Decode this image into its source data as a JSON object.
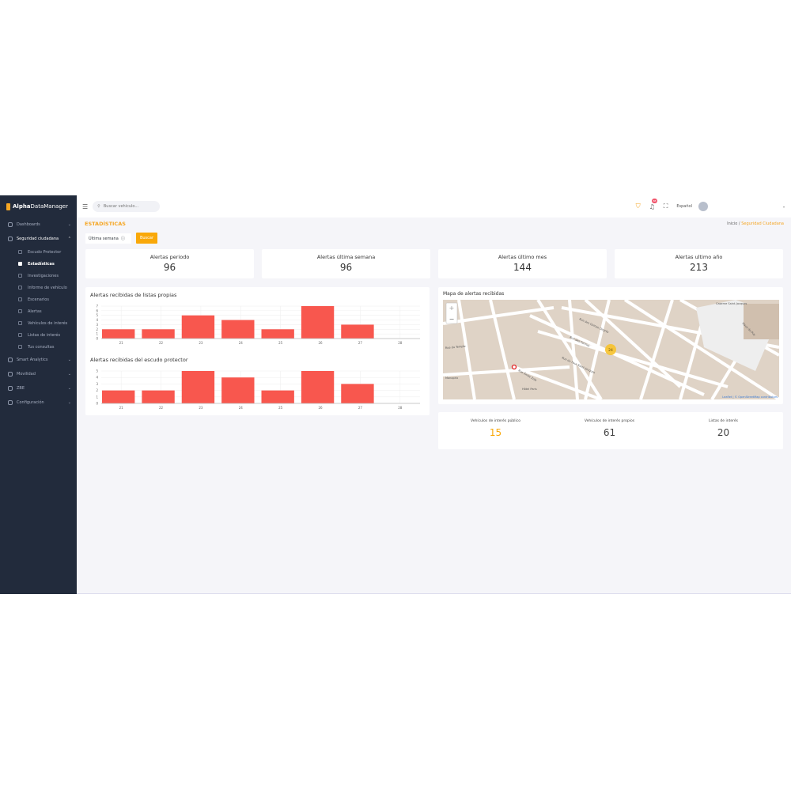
{
  "app": {
    "brand_bold": "Alpha",
    "brand_rest": "DataManager"
  },
  "sidebar": {
    "items": [
      {
        "label": "Dashboards",
        "icon": "home-icon",
        "chevron": "⌄"
      },
      {
        "label": "Seguridad ciudadana",
        "icon": "shield-icon",
        "chevron": "⌃",
        "active": true,
        "children": [
          {
            "label": "Escudo Protector",
            "icon": "shield-outline-icon"
          },
          {
            "label": "Estadísticas",
            "icon": "bar-chart-icon",
            "active": true
          },
          {
            "label": "Investigaciones",
            "icon": "investigation-icon"
          },
          {
            "label": "Informe de vehículo",
            "icon": "vehicle-report-icon"
          },
          {
            "label": "Escenarios",
            "icon": "scenario-icon"
          },
          {
            "label": "Alertas",
            "icon": "bell-icon"
          },
          {
            "label": "Vehículos de interés",
            "icon": "user-car-icon"
          },
          {
            "label": "Listas de interés",
            "icon": "list-icon"
          },
          {
            "label": "Tus consultas",
            "icon": "query-icon"
          }
        ]
      },
      {
        "label": "Smart Analytics",
        "icon": "globe-icon",
        "chevron": "⌄"
      },
      {
        "label": "Movilidad",
        "icon": "map-pin-icon",
        "chevron": "⌄"
      },
      {
        "label": "ZBE",
        "icon": "zone-icon",
        "chevron": "⌄"
      },
      {
        "label": "Configuración",
        "icon": "gear-icon",
        "chevron": "⌄"
      }
    ]
  },
  "header": {
    "search_placeholder": "Buscar vehículo...",
    "notifications": "88",
    "language": "Español",
    "accent": "#f5a623"
  },
  "page": {
    "title": "ESTADÍSTICAS",
    "breadcrumb": [
      "Inicio",
      "Seguridad Ciudadana"
    ],
    "period": "Última semana",
    "search_button": "Buscar"
  },
  "stats": [
    {
      "label": "Alertas periodo",
      "value": "96"
    },
    {
      "label": "Alertas última semana",
      "value": "96"
    },
    {
      "label": "Alertas último mes",
      "value": "144"
    },
    {
      "label": "Alertas ultimo año",
      "value": "213"
    }
  ],
  "chart_data": [
    {
      "type": "bar",
      "title": "Alertas recibidas de listas propias",
      "categories": [
        "21",
        "22",
        "23",
        "24",
        "25",
        "26",
        "27",
        "28"
      ],
      "values": [
        2,
        2,
        5,
        4,
        2,
        7,
        3,
        0
      ],
      "ylim": [
        0,
        7
      ],
      "yticks": [
        0,
        1,
        2,
        3,
        4,
        5,
        6,
        7
      ],
      "grid": true,
      "color": "#f8574e"
    },
    {
      "type": "bar",
      "title": "Alertas recibidas del escudo protector",
      "categories": [
        "21",
        "22",
        "23",
        "24",
        "25",
        "26",
        "27",
        "28"
      ],
      "values": [
        2,
        2,
        5,
        4,
        2,
        5,
        3,
        0
      ],
      "ylim": [
        0,
        5
      ],
      "yticks": [
        0,
        1,
        2,
        3,
        4,
        5
      ],
      "grid": true,
      "color": "#f8574e"
    }
  ],
  "map": {
    "title": "Mapa de alertas recibidas",
    "cluster": "24",
    "zoom_in": "+",
    "zoom_out": "−",
    "attribution": "Leaflet | © OpenStreetMap contributors",
    "labels": [
      "Rue des Quinze Degrés",
      "Rue des Farines",
      "Rue du Four Saint-Jacques",
      "Rue Émile Zola",
      "Place du Puy",
      "Rue du Temple",
      "Monoprix",
      "Hôtel Paris",
      "Caserne Saint-Jacques"
    ]
  },
  "interest": [
    {
      "label": "Vehículos de interés público",
      "value": "15",
      "color": "#f9a80a"
    },
    {
      "label": "Vehículos de interés propios",
      "value": "61"
    },
    {
      "label": "Listas de interés",
      "value": "20"
    }
  ]
}
